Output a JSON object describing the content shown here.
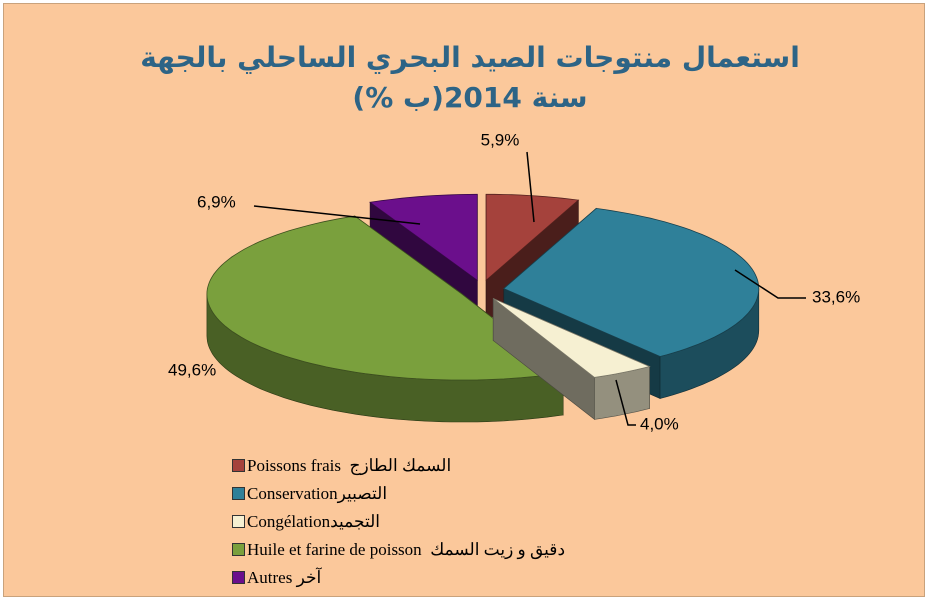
{
  "chart_data": {
    "type": "pie3d",
    "title": "استعمال منتوجات الصيد البحري الساحلي بالجهة سنة 2014(ب %)",
    "categories": [
      "Poissons frais  السمك الطازج",
      "Conservationالتصبير",
      "Congélationالتجميد",
      "Huile et farine de poisson  دقيق و زيت السمك",
      "Autres آخر"
    ],
    "values": [
      5.9,
      33.6,
      4.0,
      49.6,
      6.9
    ],
    "value_labels": [
      "5,9%",
      "33,6%",
      "4,0%",
      "49,6%",
      "6,9%"
    ],
    "colors": [
      "#a5423c",
      "#2f8099",
      "#f6f0d2",
      "#7aa03d",
      "#6b0f8c"
    ],
    "legend": "bottom-left"
  }
}
